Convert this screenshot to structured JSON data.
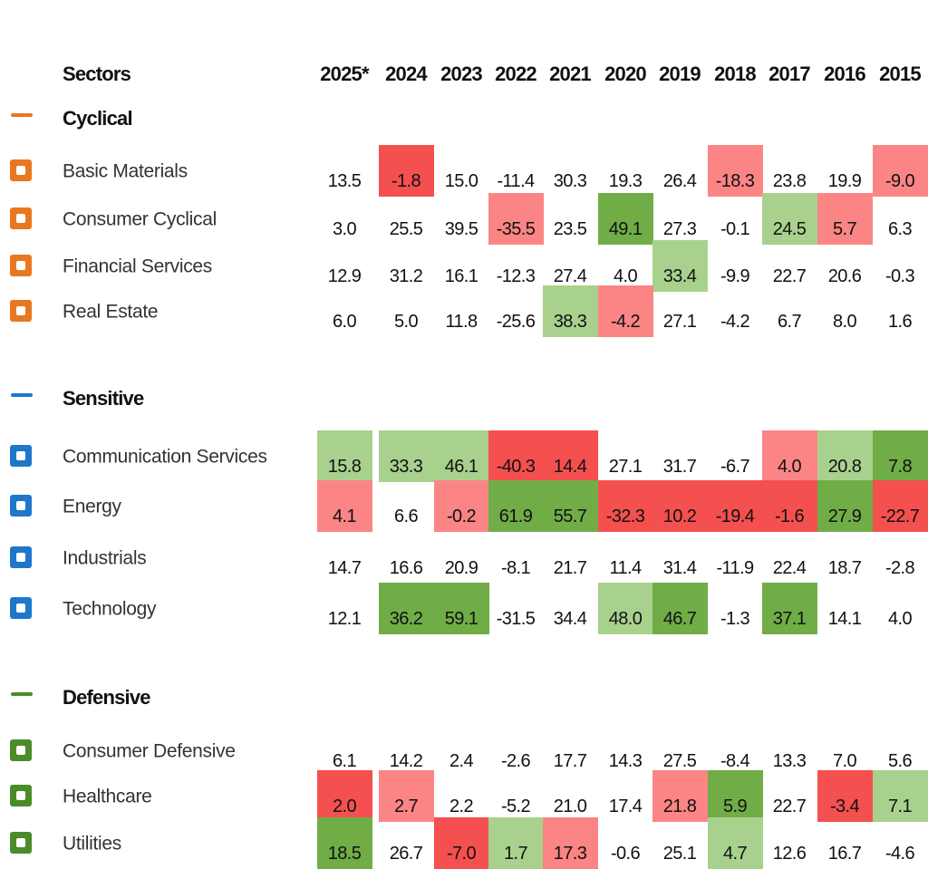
{
  "header": {
    "sectors_label": "Sectors",
    "years": [
      "2025*",
      "2024",
      "2023",
      "2022",
      "2021",
      "2020",
      "2019",
      "2018",
      "2017",
      "2016",
      "2015"
    ]
  },
  "groups": [
    {
      "name": "Cyclical",
      "icon_color": "#e87722",
      "rows": [
        {
          "label": "Basic Materials",
          "values": [
            "13.5",
            "-1.8",
            "15.0",
            "-11.4",
            "30.3",
            "19.3",
            "26.4",
            "-18.3",
            "23.8",
            "19.9",
            "-9.0"
          ],
          "colors": [
            null,
            "#f4504f",
            null,
            null,
            null,
            null,
            null,
            "#fb8585",
            null,
            null,
            "#fb8585"
          ]
        },
        {
          "label": "Consumer Cyclical",
          "values": [
            "3.0",
            "25.5",
            "39.5",
            "-35.5",
            "23.5",
            "49.1",
            "27.3",
            "-0.1",
            "24.5",
            "5.7",
            "6.3"
          ],
          "colors": [
            null,
            null,
            null,
            "#fb8585",
            null,
            "#70ad47",
            null,
            null,
            "#a9d18e",
            "#fb8585",
            null
          ]
        },
        {
          "label": "Financial Services",
          "values": [
            "12.9",
            "31.2",
            "16.1",
            "-12.3",
            "27.4",
            "4.0",
            "33.4",
            "-9.9",
            "22.7",
            "20.6",
            "-0.3"
          ],
          "colors": [
            null,
            null,
            null,
            null,
            null,
            null,
            "#a9d18e",
            null,
            null,
            null,
            null
          ]
        },
        {
          "label": "Real Estate",
          "values": [
            "6.0",
            "5.0",
            "11.8",
            "-25.6",
            "38.3",
            "-4.2",
            "27.1",
            "-4.2",
            "6.7",
            "8.0",
            "1.6"
          ],
          "colors": [
            null,
            null,
            null,
            null,
            "#a9d18e",
            "#fb8585",
            null,
            null,
            null,
            null,
            null
          ]
        }
      ]
    },
    {
      "name": "Sensitive",
      "icon_color": "#1f77c9",
      "rows": [
        {
          "label": "Communication Services",
          "values": [
            "15.8",
            "33.3",
            "46.1",
            "-40.3",
            "14.4",
            "27.1",
            "31.7",
            "-6.7",
            "4.0",
            "20.8",
            "7.8"
          ],
          "colors": [
            "#a9d18e",
            "#a9d18e",
            "#a9d18e",
            "#f4504f",
            "#f4504f",
            null,
            null,
            null,
            "#fb8585",
            "#a9d18e",
            "#70ad47"
          ]
        },
        {
          "label": "Energy",
          "values": [
            "4.1",
            "6.6",
            "-0.2",
            "61.9",
            "55.7",
            "-32.3",
            "10.2",
            "-19.4",
            "-1.6",
            "27.9",
            "-22.7"
          ],
          "colors": [
            "#fb8585",
            null,
            "#fb8585",
            "#70ad47",
            "#70ad47",
            "#f4504f",
            "#f4504f",
            "#f4504f",
            "#f4504f",
            "#70ad47",
            "#f4504f"
          ]
        },
        {
          "label": "Industrials",
          "values": [
            "14.7",
            "16.6",
            "20.9",
            "-8.1",
            "21.7",
            "11.4",
            "31.4",
            "-11.9",
            "22.4",
            "18.7",
            "-2.8"
          ],
          "colors": [
            null,
            null,
            null,
            null,
            null,
            null,
            null,
            null,
            null,
            null,
            null
          ]
        },
        {
          "label": "Technology",
          "values": [
            "12.1",
            "36.2",
            "59.1",
            "-31.5",
            "34.4",
            "48.0",
            "46.7",
            "-1.3",
            "37.1",
            "14.1",
            "4.0"
          ],
          "colors": [
            null,
            "#70ad47",
            "#70ad47",
            null,
            null,
            "#a9d18e",
            "#70ad47",
            null,
            "#70ad47",
            null,
            null
          ]
        }
      ]
    },
    {
      "name": "Defensive",
      "icon_color": "#4a8c2a",
      "rows": [
        {
          "label": "Consumer Defensive",
          "values": [
            "6.1",
            "14.2",
            "2.4",
            "-2.6",
            "17.7",
            "14.3",
            "27.5",
            "-8.4",
            "13.3",
            "7.0",
            "5.6"
          ],
          "colors": [
            null,
            null,
            null,
            null,
            null,
            null,
            null,
            null,
            null,
            null,
            null
          ]
        },
        {
          "label": "Healthcare",
          "values": [
            "2.0",
            "2.7",
            "2.2",
            "-5.2",
            "21.0",
            "17.4",
            "21.8",
            "5.9",
            "22.7",
            "-3.4",
            "7.1"
          ],
          "colors": [
            "#f4504f",
            "#fb8585",
            null,
            null,
            null,
            null,
            "#fb8585",
            "#70ad47",
            null,
            "#f4504f",
            "#a9d18e"
          ]
        },
        {
          "label": "Utilities",
          "values": [
            "18.5",
            "26.7",
            "-7.0",
            "1.7",
            "17.3",
            "-0.6",
            "25.1",
            "4.7",
            "12.6",
            "16.7",
            "-4.6"
          ],
          "colors": [
            "#70ad47",
            null,
            "#f4504f",
            "#a9d18e",
            "#fb8585",
            null,
            null,
            "#a9d18e",
            null,
            null,
            null
          ]
        }
      ]
    }
  ]
}
